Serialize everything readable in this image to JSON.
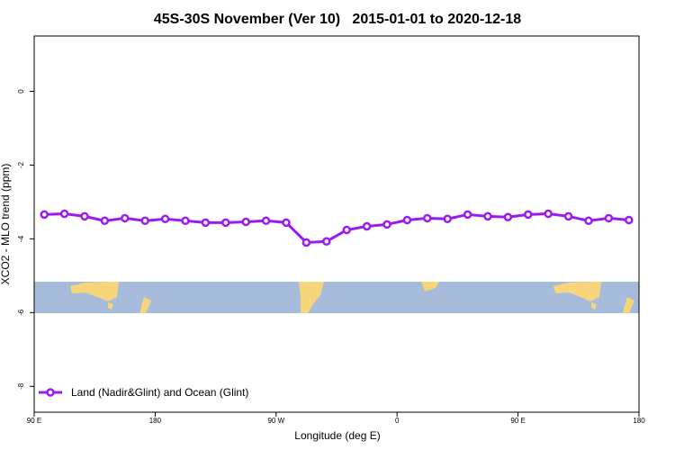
{
  "chart_data": {
    "type": "line",
    "title": "45S-30S November (Ver 10)   2015-01-01 to 2020-12-18",
    "x_label": "Longitude (deg E)",
    "y_label": "XCO2 - MLO trend (ppm)",
    "xlim": [
      90,
      540
    ],
    "xticks": [
      {
        "value": 90,
        "label": "90 E"
      },
      {
        "value": 180,
        "label": "180"
      },
      {
        "value": 270,
        "label": "90 W"
      },
      {
        "value": 360,
        "label": "0"
      },
      {
        "value": 450,
        "label": "90 E"
      },
      {
        "value": 540,
        "label": "180"
      }
    ],
    "ylim": [
      -8.7,
      1.5
    ],
    "yticks": [
      0,
      -2,
      -4,
      -6,
      -8
    ],
    "legend": "bottom-left",
    "x": [
      97.5,
      112.5,
      127.5,
      142.5,
      157.5,
      172.5,
      187.5,
      202.5,
      217.5,
      232.5,
      247.5,
      262.5,
      277.5,
      292.5,
      307.5,
      322.5,
      337.5,
      352.5,
      367.5,
      382.5,
      397.5,
      412.5,
      427.5,
      442.5,
      457.5,
      472.5,
      487.5,
      502.5,
      517.5,
      532.5
    ],
    "series": [
      {
        "name": "Land (Nadir&Glint) and Ocean (Glint)",
        "color": "#9b1aee",
        "values": [
          -3.34,
          -3.32,
          -3.39,
          -3.51,
          -3.44,
          -3.51,
          -3.46,
          -3.51,
          -3.56,
          -3.56,
          -3.54,
          -3.51,
          -3.56,
          -4.1,
          -4.07,
          -3.76,
          -3.66,
          -3.61,
          -3.49,
          -3.44,
          -3.46,
          -3.34,
          -3.39,
          -3.41,
          -3.34,
          -3.32,
          -3.39,
          -3.51,
          -3.44,
          -3.49
        ]
      }
    ]
  }
}
